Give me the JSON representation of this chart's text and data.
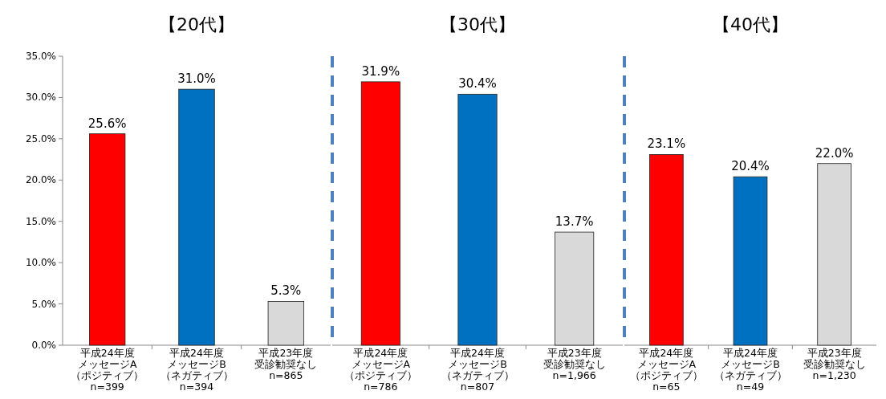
{
  "chart_data": [
    {
      "type": "bar",
      "title": "【20代】",
      "categories": [
        "平成24年度メッセージA（ポジティブ）\nn=399",
        "平成24年度メッセージB（ネガティブ）\nn=394",
        "平成23年度受診勧奨なし\nn=865"
      ],
      "values": [
        25.6,
        31.0,
        5.3
      ],
      "colors": [
        "#ff0000",
        "#0070c0",
        "#d9d9d9"
      ],
      "value_labels": [
        "25.6%",
        "31.0%",
        "5.3%"
      ],
      "ylim": [
        0,
        35
      ],
      "yticks": [
        {
          "value": 0,
          "label": "0.0%"
        },
        {
          "value": 5,
          "label": "5.0%"
        },
        {
          "value": 10,
          "label": "10.0%"
        },
        {
          "value": 15,
          "label": "15.0%"
        },
        {
          "value": 20,
          "label": "20.0%"
        },
        {
          "value": 25,
          "label": "25.0%"
        },
        {
          "value": 30,
          "label": "30.0%"
        },
        {
          "value": 35,
          "label": "35.0%"
        }
      ],
      "grid": false
    },
    {
      "type": "bar",
      "title": "【30代】",
      "categories": [
        "平成24年度メッセージA（ポジティブ）\nn=786",
        "平成24年度メッセージB（ネガティブ）\nn=807",
        "平成23年度受診勧奨なし\nn=1,966"
      ],
      "values": [
        31.9,
        30.4,
        13.7
      ],
      "colors": [
        "#ff0000",
        "#0070c0",
        "#d9d9d9"
      ],
      "value_labels": [
        "31.9%",
        "30.4%",
        "13.7%"
      ],
      "ylim": [
        0,
        35
      ],
      "tick_labels": "x",
      "grid": false
    },
    {
      "type": "bar",
      "title": "【40代】",
      "categories": [
        "平成24年度メッセージA（ポジティブ）\nn=65",
        "平成24年度メッセージB（ネガティブ）\nn=49",
        "平成23年度受診勧奨なし\nn=1,230"
      ],
      "values": [
        23.1,
        20.4,
        22.0
      ],
      "colors": [
        "#ff0000",
        "#0070c0",
        "#d9d9d9"
      ],
      "value_labels": [
        "23.1%",
        "20.4%",
        "22.0%"
      ],
      "ylim": [
        0,
        35
      ],
      "tick_labels": "x",
      "grid": false
    }
  ]
}
